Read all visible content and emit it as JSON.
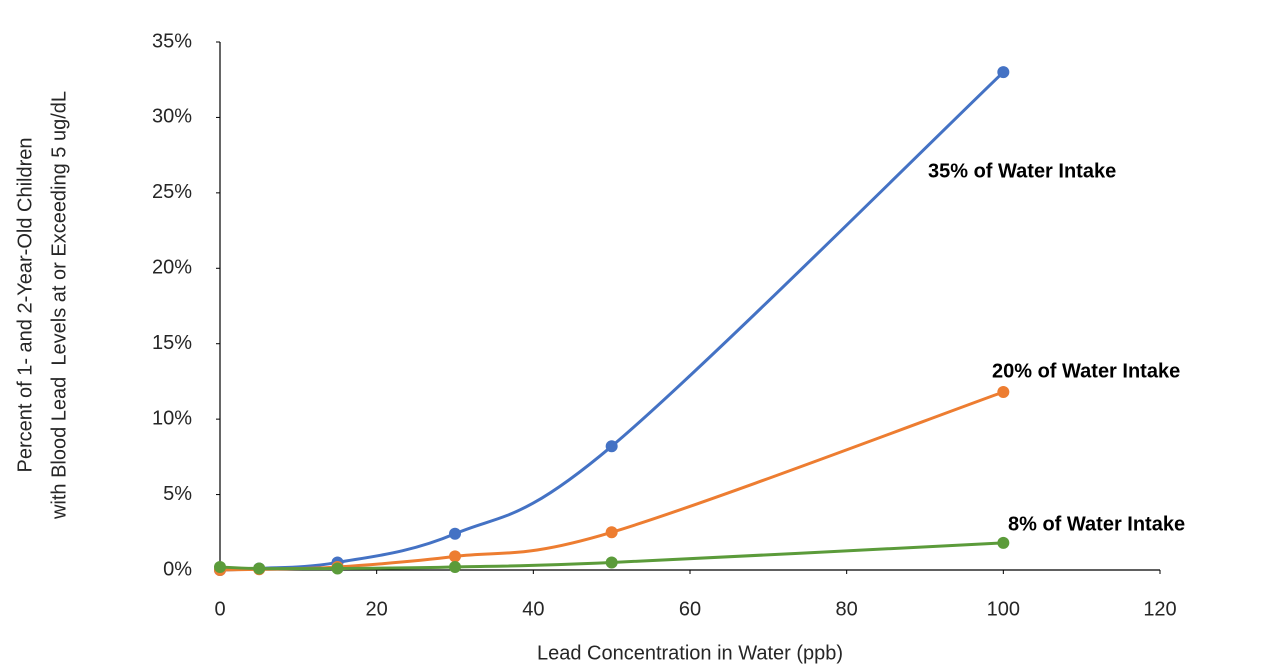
{
  "chart_data": {
    "type": "line",
    "xlabel": "Lead Concentration in Water (ppb)",
    "ylabel": [
      "Percent of 1- and 2-Year-Old Children",
      "with Blood Lead  Levels at or Exceeding 5 ug/dL"
    ],
    "x": [
      0,
      5,
      15,
      30,
      50,
      100
    ],
    "series": [
      {
        "name": "35% of Water Intake",
        "color": "#4472c4",
        "values": [
          0,
          0.1,
          0.5,
          2.4,
          8.2,
          33
        ]
      },
      {
        "name": "20% of Water Intake",
        "color": "#ed7d31",
        "values": [
          0,
          0.05,
          0.2,
          0.9,
          2.5,
          11.8
        ]
      },
      {
        "name": "8% of Water Intake",
        "color": "#5b9b3a",
        "values": [
          0.2,
          0.1,
          0.1,
          0.2,
          0.5,
          1.8
        ]
      }
    ],
    "xlim": [
      0,
      120
    ],
    "xticks": [
      0,
      20,
      40,
      60,
      80,
      100,
      120
    ],
    "ylim": [
      0,
      35
    ],
    "yticks": [
      {
        "value": 0,
        "label": "0%"
      },
      {
        "value": 5,
        "label": "5%"
      },
      {
        "value": 10,
        "label": "10%"
      },
      {
        "value": 15,
        "label": "15%"
      },
      {
        "value": 20,
        "label": "20%"
      },
      {
        "value": 25,
        "label": "25%"
      },
      {
        "value": 30,
        "label": "30%"
      },
      {
        "value": 35,
        "label": "35%"
      }
    ],
    "smooth": true,
    "grid": false
  }
}
